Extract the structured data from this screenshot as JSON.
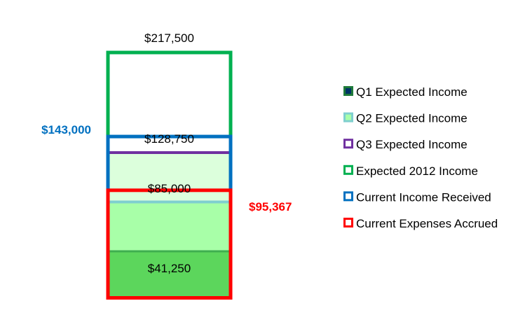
{
  "chart_data": {
    "type": "bar",
    "title": "",
    "xlabel": "",
    "ylabel": "",
    "ylim": [
      0,
      250000
    ],
    "grid": false,
    "legend_placement": "right",
    "stacked_series": [
      {
        "name": "Q1 Expected Income",
        "value": 41250,
        "label": "$41,250",
        "fill": "#5cd65c",
        "legend_fill": "#003366",
        "legend_border": "#1f7a3a"
      },
      {
        "name": "Q2 Expected Income",
        "value": 85000,
        "label": "$85,000",
        "fill": "#a8ffa8",
        "legend_fill": "#a8ffa8",
        "legend_border": "#7fcfcf",
        "top_line": "#7fcfcf"
      },
      {
        "name": "Q3 Expected Income",
        "value": 128750,
        "label": "$128,750",
        "fill": "#dcffdc",
        "legend_fill": "#ffffff",
        "legend_border": "#7030a0",
        "top_line": "#7030a0"
      }
    ],
    "outline_series": [
      {
        "name": "Expected 2012 Income",
        "value": 217500,
        "label": "$217,500",
        "color": "#00b050",
        "label_position": "top"
      },
      {
        "name": "Current Income Received",
        "value": 143000,
        "label": "$143,000",
        "color": "#0070c0",
        "label_position": "left"
      },
      {
        "name": "Current Expenses Accrued",
        "value": 95367,
        "label": "$95,367",
        "color": "#ff0000",
        "label_position": "right"
      }
    ],
    "legend": [
      {
        "name": "Q1 Expected Income",
        "fill": "#003366",
        "border": "#1f7a3a"
      },
      {
        "name": "Q2 Expected Income",
        "fill": "#a8ffa8",
        "border": "#7fcfcf"
      },
      {
        "name": "Q3 Expected Income",
        "fill": "#ffffff",
        "border": "#7030a0"
      },
      {
        "name": "Expected 2012 Income",
        "fill": "#ffffff",
        "border": "#00b050"
      },
      {
        "name": "Current Income Received",
        "fill": "#ffffff",
        "border": "#0070c0"
      },
      {
        "name": "Current Expenses Accrued",
        "fill": "#ffffff",
        "border": "#ff0000"
      }
    ]
  }
}
